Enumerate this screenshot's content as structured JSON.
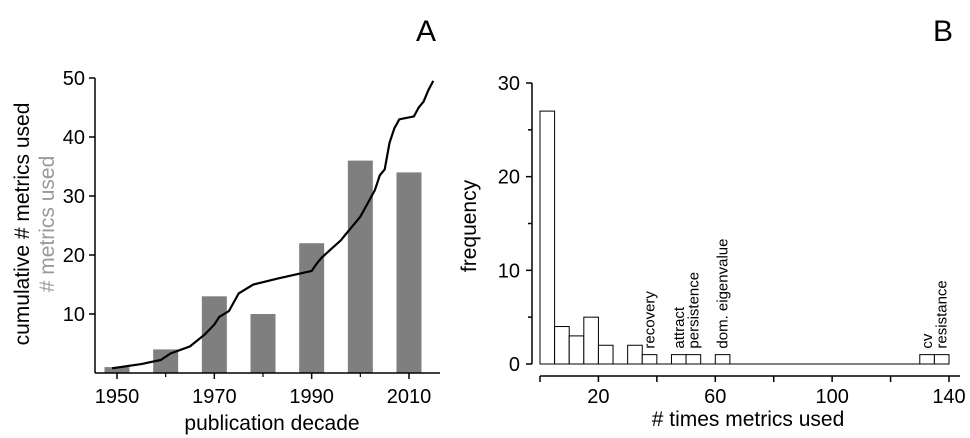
{
  "chart_data": [
    {
      "type": "bar",
      "panel_label": "A",
      "xlabel": "publication decade",
      "ylabel": "cumulative # metrics used",
      "ylabel_secondary": "# metrics used",
      "colors": {
        "bars": "#7f7f7f",
        "secondary_label": "#9a9a9a",
        "line": "#000000"
      },
      "x_ticks": [
        "1950",
        "1970",
        "1990",
        "2010"
      ],
      "x_tick_values": [
        1950,
        1970,
        1990,
        2010
      ],
      "y_ticks": [
        "10",
        "20",
        "30",
        "40",
        "50"
      ],
      "y_tick_values": [
        10,
        20,
        30,
        40,
        50
      ],
      "xlim": [
        1945,
        2015
      ],
      "ylim": [
        0,
        50
      ],
      "bars": [
        {
          "x": 1950,
          "value": 1
        },
        {
          "x": 1960,
          "value": 4
        },
        {
          "x": 1970,
          "value": 13
        },
        {
          "x": 1980,
          "value": 10
        },
        {
          "x": 1990,
          "value": 22
        },
        {
          "x": 2000,
          "value": 36
        },
        {
          "x": 2010,
          "value": 34
        }
      ],
      "cumulative_line": [
        [
          1949,
          0.8
        ],
        [
          1955,
          1.5
        ],
        [
          1959,
          2.2
        ],
        [
          1961,
          3.3
        ],
        [
          1965,
          4.5
        ],
        [
          1968,
          6.5
        ],
        [
          1970,
          8.2
        ],
        [
          1971,
          9.5
        ],
        [
          1973,
          10.5
        ],
        [
          1975,
          13.5
        ],
        [
          1978,
          15.0
        ],
        [
          1983,
          16.0
        ],
        [
          1990,
          17.3
        ],
        [
          1991,
          18.5
        ],
        [
          1992,
          19.5
        ],
        [
          1994,
          21.0
        ],
        [
          1996,
          22.5
        ],
        [
          1997,
          23.5
        ],
        [
          1998,
          24.5
        ],
        [
          1999,
          25.5
        ],
        [
          2000,
          26.5
        ],
        [
          2001,
          28.0
        ],
        [
          2002,
          29.5
        ],
        [
          2003,
          31.0
        ],
        [
          2004,
          33.5
        ],
        [
          2005,
          34.5
        ],
        [
          2006,
          39.0
        ],
        [
          2007,
          41.5
        ],
        [
          2008,
          43.0
        ],
        [
          2011,
          43.5
        ],
        [
          2012,
          45.0
        ],
        [
          2013,
          46.0
        ],
        [
          2014,
          48.0
        ],
        [
          2015,
          49.5
        ]
      ]
    },
    {
      "type": "bar",
      "subtype": "histogram",
      "panel_label": "B",
      "xlabel": "# times metrics used",
      "ylabel": "frequency",
      "colors": {
        "bars_fill": "#ffffff",
        "bars_edge": "#000000"
      },
      "x_ticks": [
        "20",
        "60",
        "100",
        "140"
      ],
      "x_tick_values": [
        20,
        60,
        100,
        140
      ],
      "y_ticks": [
        "0",
        "10",
        "20",
        "30"
      ],
      "y_tick_values": [
        0,
        10,
        20,
        30
      ],
      "xlim": [
        0,
        140
      ],
      "ylim": [
        0,
        30
      ],
      "bin_width": 5,
      "bin_starts": [
        0,
        5,
        10,
        15,
        20,
        25,
        30,
        35,
        40,
        45,
        50,
        55,
        60,
        65,
        70,
        75,
        80,
        85,
        90,
        95,
        100,
        105,
        110,
        115,
        120,
        125,
        130,
        135
      ],
      "frequencies": [
        27,
        4,
        3,
        5,
        2,
        0,
        2,
        1,
        0,
        1,
        1,
        0,
        1,
        0,
        0,
        0,
        0,
        0,
        0,
        0,
        0,
        0,
        0,
        0,
        0,
        0,
        1,
        1
      ],
      "annotations": [
        {
          "text": "recovery",
          "x": 37.5
        },
        {
          "text": "attract",
          "x": 47.5
        },
        {
          "text": "persistence",
          "x": 52.5
        },
        {
          "text": "dom. eigenvalue",
          "x": 62.5
        },
        {
          "text": "cv",
          "x": 132.5
        },
        {
          "text": "resistance",
          "x": 137.5
        }
      ]
    }
  ]
}
